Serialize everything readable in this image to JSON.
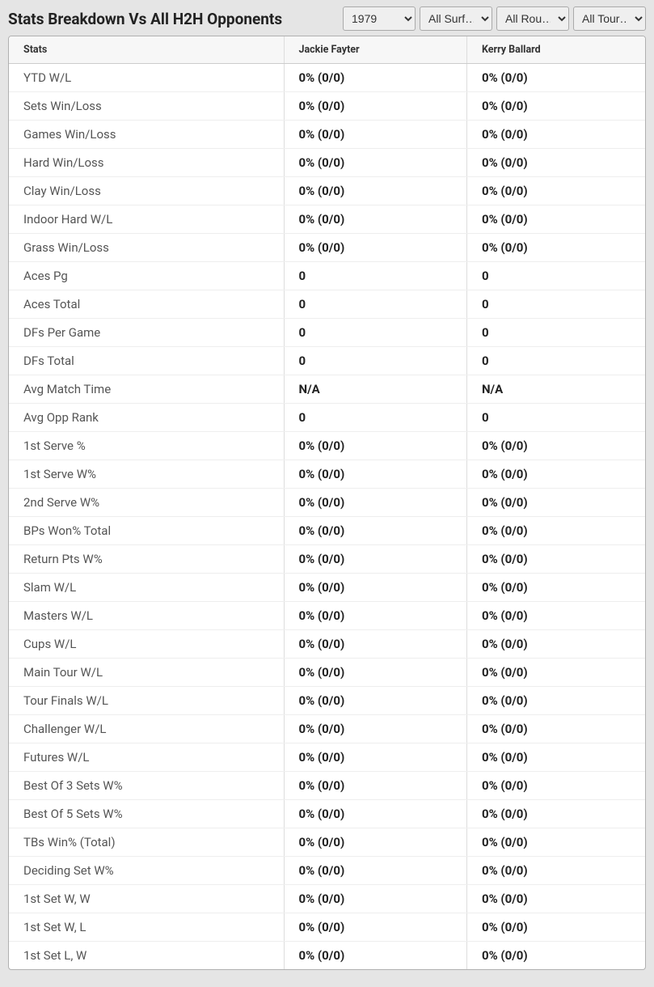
{
  "header": {
    "title": "Stats Breakdown Vs All H2H Opponents",
    "filters": {
      "year": "1979",
      "surface": "All Surf…",
      "round": "All Rou…",
      "tour": "All Tour…"
    }
  },
  "table": {
    "columns": [
      "Stats",
      "Jackie Fayter",
      "Kerry Ballard"
    ],
    "rows": [
      {
        "stat": "YTD W/L",
        "p1": "0% (0/0)",
        "p2": "0% (0/0)"
      },
      {
        "stat": "Sets Win/Loss",
        "p1": "0% (0/0)",
        "p2": "0% (0/0)"
      },
      {
        "stat": "Games Win/Loss",
        "p1": "0% (0/0)",
        "p2": "0% (0/0)"
      },
      {
        "stat": "Hard Win/Loss",
        "p1": "0% (0/0)",
        "p2": "0% (0/0)"
      },
      {
        "stat": "Clay Win/Loss",
        "p1": "0% (0/0)",
        "p2": "0% (0/0)"
      },
      {
        "stat": "Indoor Hard W/L",
        "p1": "0% (0/0)",
        "p2": "0% (0/0)"
      },
      {
        "stat": "Grass Win/Loss",
        "p1": "0% (0/0)",
        "p2": "0% (0/0)"
      },
      {
        "stat": "Aces Pg",
        "p1": "0",
        "p2": "0"
      },
      {
        "stat": "Aces Total",
        "p1": "0",
        "p2": "0"
      },
      {
        "stat": "DFs Per Game",
        "p1": "0",
        "p2": "0"
      },
      {
        "stat": "DFs Total",
        "p1": "0",
        "p2": "0"
      },
      {
        "stat": "Avg Match Time",
        "p1": "N/A",
        "p2": "N/A"
      },
      {
        "stat": "Avg Opp Rank",
        "p1": "0",
        "p2": "0"
      },
      {
        "stat": "1st Serve %",
        "p1": "0% (0/0)",
        "p2": "0% (0/0)"
      },
      {
        "stat": "1st Serve W%",
        "p1": "0% (0/0)",
        "p2": "0% (0/0)"
      },
      {
        "stat": "2nd Serve W%",
        "p1": "0% (0/0)",
        "p2": "0% (0/0)"
      },
      {
        "stat": "BPs Won% Total",
        "p1": "0% (0/0)",
        "p2": "0% (0/0)"
      },
      {
        "stat": "Return Pts W%",
        "p1": "0% (0/0)",
        "p2": "0% (0/0)"
      },
      {
        "stat": "Slam W/L",
        "p1": "0% (0/0)",
        "p2": "0% (0/0)"
      },
      {
        "stat": "Masters W/L",
        "p1": "0% (0/0)",
        "p2": "0% (0/0)"
      },
      {
        "stat": "Cups W/L",
        "p1": "0% (0/0)",
        "p2": "0% (0/0)"
      },
      {
        "stat": "Main Tour W/L",
        "p1": "0% (0/0)",
        "p2": "0% (0/0)"
      },
      {
        "stat": "Tour Finals W/L",
        "p1": "0% (0/0)",
        "p2": "0% (0/0)"
      },
      {
        "stat": "Challenger W/L",
        "p1": "0% (0/0)",
        "p2": "0% (0/0)"
      },
      {
        "stat": "Futures W/L",
        "p1": "0% (0/0)",
        "p2": "0% (0/0)"
      },
      {
        "stat": "Best Of 3 Sets W%",
        "p1": "0% (0/0)",
        "p2": "0% (0/0)"
      },
      {
        "stat": "Best Of 5 Sets W%",
        "p1": "0% (0/0)",
        "p2": "0% (0/0)"
      },
      {
        "stat": "TBs Win% (Total)",
        "p1": "0% (0/0)",
        "p2": "0% (0/0)"
      },
      {
        "stat": "Deciding Set W%",
        "p1": "0% (0/0)",
        "p2": "0% (0/0)"
      },
      {
        "stat": "1st Set W, W",
        "p1": "0% (0/0)",
        "p2": "0% (0/0)"
      },
      {
        "stat": "1st Set W, L",
        "p1": "0% (0/0)",
        "p2": "0% (0/0)"
      },
      {
        "stat": "1st Set L, W",
        "p1": "0% (0/0)",
        "p2": "0% (0/0)"
      }
    ]
  },
  "colors": {
    "page_bg": "#e5e5e5",
    "table_bg": "#ffffff",
    "header_bg": "#f7f7f7",
    "border": "#b0b0b0",
    "row_border": "#eeeeee",
    "col_border": "#dddddd",
    "text_primary": "#222222",
    "text_secondary": "#555555"
  }
}
